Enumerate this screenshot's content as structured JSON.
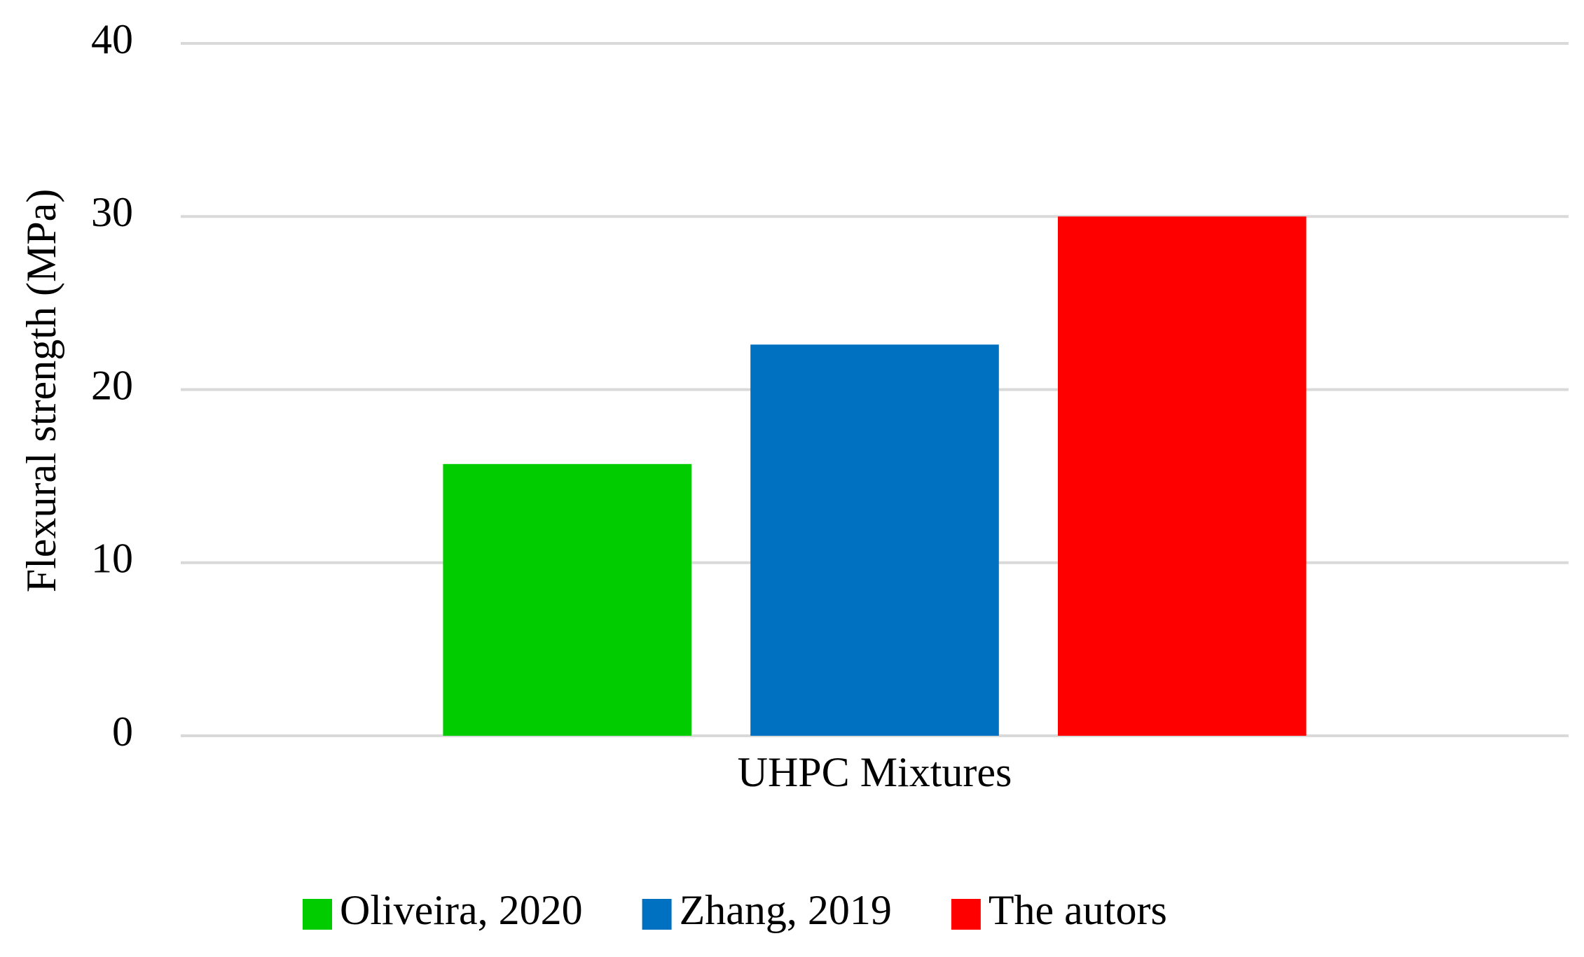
{
  "chart_data": {
    "type": "bar",
    "y_label": "Flexural strength (MPa)",
    "categories": [
      "UHPC Mixtures"
    ],
    "series": [
      {
        "name": "Oliveira, 2020",
        "color": "#00cc00",
        "values": [
          15.7
        ]
      },
      {
        "name": "Zhang, 2019",
        "color": "#0070c0",
        "values": [
          22.6
        ]
      },
      {
        "name": "The autors",
        "color": "#ff0000",
        "values": [
          30.0
        ]
      }
    ],
    "ylim": [
      0,
      40
    ],
    "yticks": [
      0,
      10,
      20,
      30,
      40
    ],
    "grid": true,
    "legend": "bottom"
  }
}
